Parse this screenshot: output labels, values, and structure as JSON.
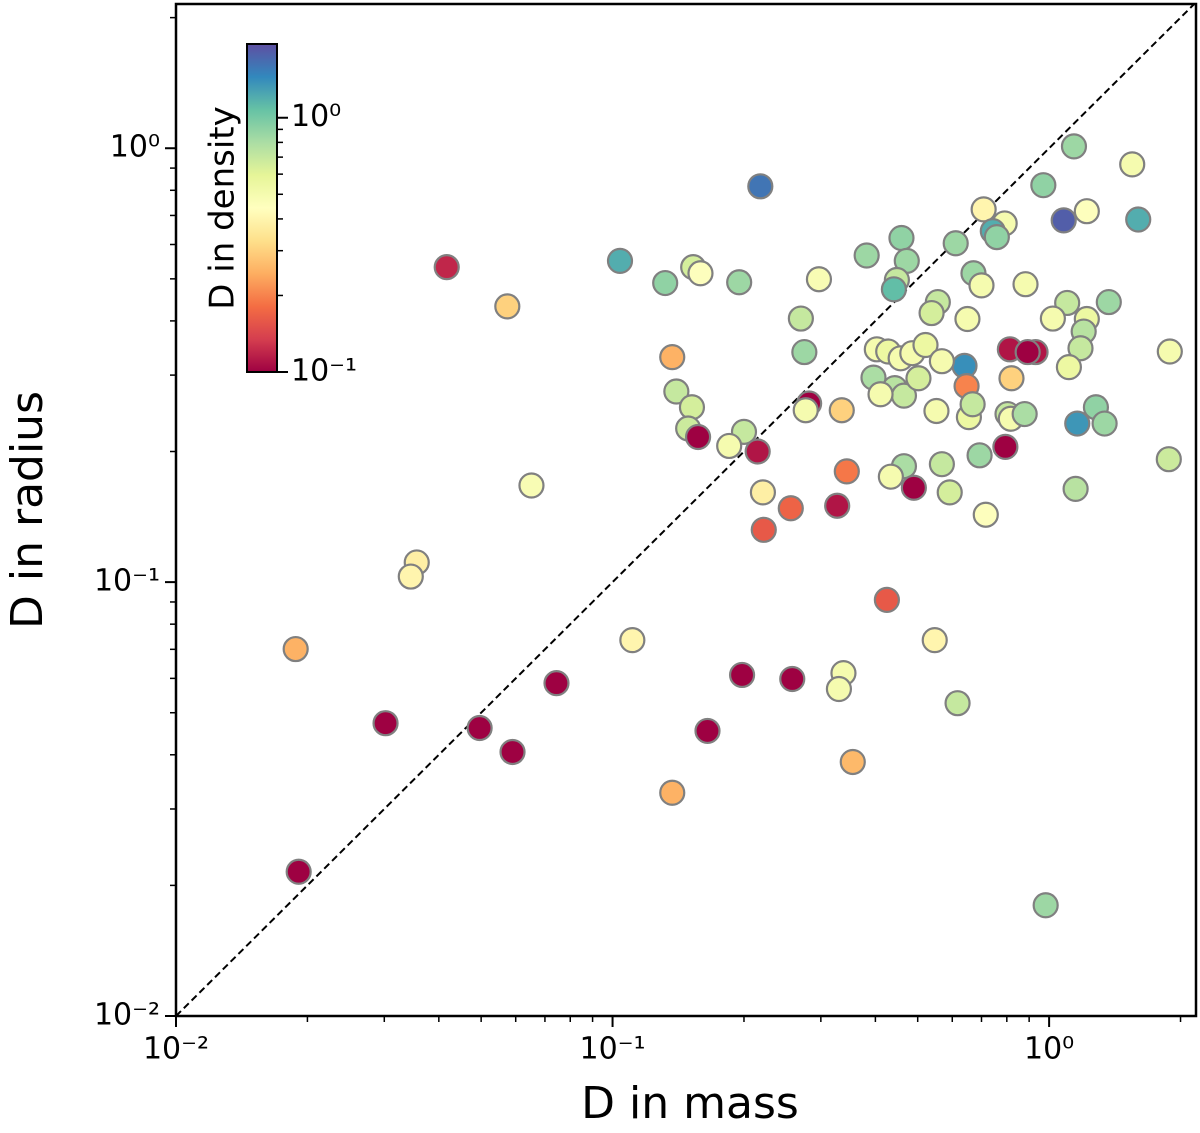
{
  "chart_data": {
    "type": "scatter",
    "xlabel": "D in mass",
    "ylabel": "D in radius",
    "xscale": "log",
    "yscale": "log",
    "xlim": [
      0.01,
      2.17
    ],
    "ylim": [
      0.01,
      2.15
    ],
    "xticks": [
      {
        "value": 0.01,
        "label": "10⁻²"
      },
      {
        "value": 0.1,
        "label": "10⁻¹"
      },
      {
        "value": 1,
        "label": "10⁰"
      }
    ],
    "yticks": [
      {
        "value": 0.01,
        "label": "10⁻²"
      },
      {
        "value": 0.1,
        "label": "10⁻¹"
      },
      {
        "value": 1,
        "label": "10⁰"
      }
    ],
    "colorbar_label": "D in density",
    "clim": [
      0.1,
      1.95
    ],
    "cticks": [
      {
        "value": 0.1,
        "label": "10⁻¹"
      },
      {
        "value": 1,
        "label": "10⁰"
      }
    ],
    "colormap": [
      "#9e0142",
      "#d53e4f",
      "#f46d43",
      "#fdae61",
      "#fee08b",
      "#ffffbf",
      "#e6f598",
      "#abdda4",
      "#66c2a5",
      "#3288bd",
      "#5e4fa2"
    ],
    "edgecolor": "#808080",
    "x": [
      0.0417,
      0.0574,
      0.104,
      0.132,
      0.153,
      0.159,
      0.195,
      0.218,
      0.297,
      0.27,
      0.275,
      0.137,
      0.14,
      0.152,
      0.149,
      0.157,
      0.2,
      0.185,
      0.215,
      0.282,
      0.277,
      0.335,
      0.221,
      0.256,
      0.222,
      0.327,
      0.344,
      0.0652,
      0.0356,
      0.0345,
      0.0188,
      0.0302,
      0.0496,
      0.059,
      0.0744,
      0.111,
      0.137,
      0.165,
      0.198,
      0.258,
      0.338,
      0.33,
      0.355,
      0.425,
      0.547,
      0.617,
      0.982,
      0.0191,
      0.382,
      0.459,
      0.472,
      0.448,
      0.441,
      0.611,
      0.708,
      0.791,
      0.743,
      0.759,
      0.671,
      0.7,
      0.556,
      0.538,
      0.65,
      0.883,
      0.97,
      1.14,
      1.08,
      1.22,
      1.55,
      1.6,
      1.37,
      1.1,
      1.02,
      1.22,
      1.2,
      1.18,
      1.11,
      1.89,
      0.813,
      0.931,
      0.893,
      0.64,
      0.647,
      0.82,
      0.403,
      0.428,
      0.457,
      0.486,
      0.521,
      0.568,
      0.396,
      0.443,
      0.465,
      0.502,
      0.411,
      0.552,
      0.655,
      0.668,
      0.803,
      0.817,
      0.879,
      1.16,
      1.28,
      1.34,
      0.693,
      0.794,
      0.465,
      0.434,
      0.49,
      0.568,
      0.592,
      0.716,
      1.15,
      1.88
    ],
    "y": [
      0.532,
      0.432,
      0.55,
      0.489,
      0.532,
      0.515,
      0.491,
      0.817,
      0.499,
      0.405,
      0.339,
      0.33,
      0.275,
      0.253,
      0.226,
      0.216,
      0.222,
      0.206,
      0.2,
      0.258,
      0.249,
      0.249,
      0.161,
      0.148,
      0.132,
      0.15,
      0.18,
      0.167,
      0.111,
      0.103,
      0.0701,
      0.0473,
      0.0461,
      0.0406,
      0.0585,
      0.0735,
      0.0327,
      0.0454,
      0.0611,
      0.0598,
      0.0617,
      0.0567,
      0.0385,
      0.091,
      0.0735,
      0.0526,
      0.018,
      0.0215,
      0.566,
      0.621,
      0.55,
      0.497,
      0.473,
      0.604,
      0.723,
      0.671,
      0.644,
      0.624,
      0.515,
      0.483,
      0.442,
      0.417,
      0.404,
      0.486,
      0.822,
      1.01,
      0.682,
      0.716,
      0.918,
      0.685,
      0.442,
      0.44,
      0.405,
      0.404,
      0.378,
      0.346,
      0.313,
      0.34,
      0.344,
      0.339,
      0.339,
      0.315,
      0.283,
      0.295,
      0.344,
      0.34,
      0.328,
      0.337,
      0.352,
      0.323,
      0.296,
      0.28,
      0.269,
      0.295,
      0.271,
      0.248,
      0.24,
      0.257,
      0.244,
      0.238,
      0.244,
      0.232,
      0.253,
      0.232,
      0.196,
      0.205,
      0.185,
      0.175,
      0.165,
      0.187,
      0.161,
      0.143,
      0.164,
      0.192
    ],
    "c": [
      0.12,
      0.3,
      1.2,
      0.9,
      0.65,
      0.45,
      0.85,
      1.6,
      0.48,
      0.7,
      0.85,
      0.25,
      0.7,
      0.65,
      0.68,
      0.1,
      0.7,
      0.5,
      0.11,
      0.1,
      0.5,
      0.3,
      0.38,
      0.17,
      0.16,
      0.11,
      0.19,
      0.48,
      0.38,
      0.4,
      0.25,
      0.1,
      0.1,
      0.1,
      0.1,
      0.4,
      0.25,
      0.1,
      0.1,
      0.1,
      0.5,
      0.5,
      0.26,
      0.16,
      0.4,
      0.7,
      0.85,
      0.1,
      0.85,
      0.9,
      0.85,
      0.7,
      1.1,
      0.85,
      0.4,
      0.5,
      1.2,
      0.9,
      0.85,
      0.5,
      0.7,
      0.65,
      0.5,
      0.5,
      0.9,
      0.85,
      1.8,
      0.45,
      0.5,
      1.2,
      0.85,
      0.7,
      0.5,
      0.55,
      0.75,
      0.7,
      0.55,
      0.5,
      0.11,
      0.11,
      0.1,
      1.4,
      0.2,
      0.3,
      0.5,
      0.55,
      0.5,
      0.5,
      0.55,
      0.5,
      0.8,
      0.75,
      0.7,
      0.65,
      0.5,
      0.5,
      0.55,
      0.7,
      0.7,
      0.5,
      0.8,
      1.35,
      0.9,
      0.85,
      0.85,
      0.1,
      0.8,
      0.5,
      0.1,
      0.7,
      0.65,
      0.45,
      0.75,
      0.68
    ]
  }
}
